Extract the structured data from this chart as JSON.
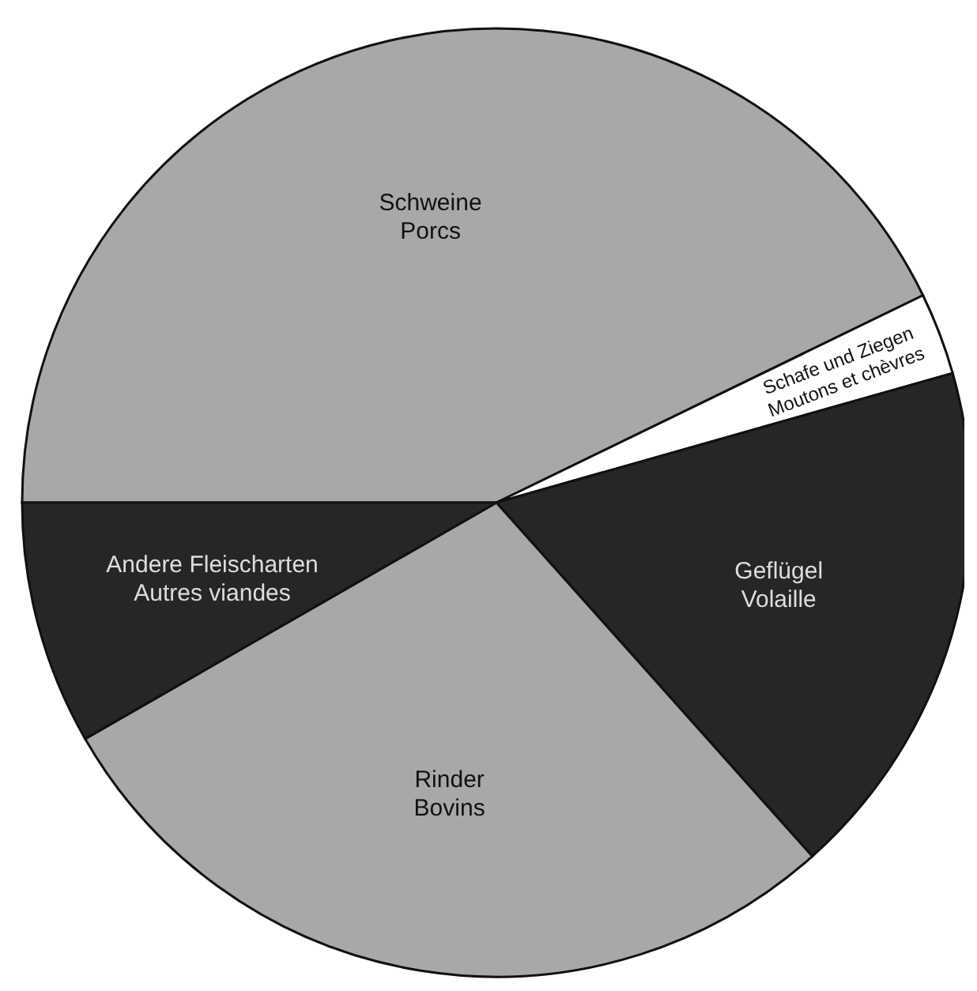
{
  "chart_data": {
    "type": "pie",
    "categories": [
      "Schweine\nPorcs",
      "Schafe und Ziegen\nMoutons et chèvres",
      "Geflügel\nVolaille",
      "Rinder\nBovins",
      "Andere Fleischarten\nAutres viandes"
    ],
    "values": [
      42.8,
      2.8,
      17.8,
      28.3,
      8.3
    ],
    "colors": [
      "#a8a8a8",
      "#ffffff",
      "#262626",
      "#a8a8a8",
      "#262626"
    ]
  }
}
